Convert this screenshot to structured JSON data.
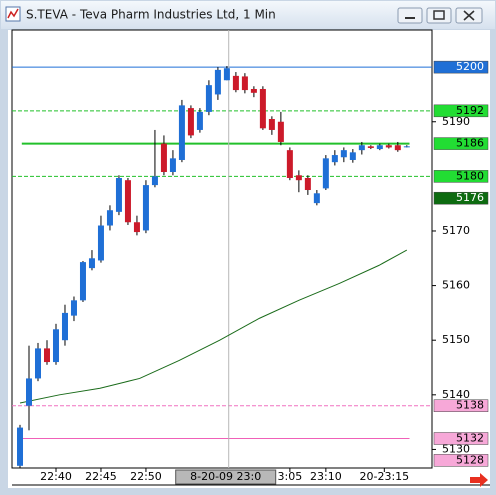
{
  "window": {
    "title": "S.TEVA - Teva Pharm Industries Ltd, 1 Min"
  },
  "chart_data": {
    "type": "candlestick",
    "ylim": [
      5126.6,
      5206.8
    ],
    "xlim": [
      -0.89,
      45.8
    ],
    "yticks": [
      5190,
      5170,
      5160,
      5150,
      5140,
      5130
    ],
    "xticks": [
      {
        "value": 4,
        "label": "22:40"
      },
      {
        "value": 9,
        "label": "22:45"
      },
      {
        "value": 14,
        "label": "22:50"
      },
      {
        "value": 30,
        "label": "3:05"
      },
      {
        "value": 34,
        "label": "23:10"
      },
      {
        "value": 40.5,
        "label": "20-23:15"
      }
    ],
    "crosshair": {
      "x": 23.2,
      "label": "8-20-09 23:0"
    },
    "up_color": "#1f6fd6",
    "down_color": "#cc1a2a",
    "candles": [
      [
        5127,
        5134.5,
        5126,
        5134
      ],
      [
        5138,
        5149,
        5133.5,
        5143
      ],
      [
        5143,
        5149.5,
        5142.5,
        5148.5
      ],
      [
        5148.5,
        5150,
        5145.5,
        5146
      ],
      [
        5146,
        5153,
        5145.5,
        5152
      ],
      [
        5150,
        5156.5,
        5149,
        5155
      ],
      [
        5154.5,
        5158,
        5153.5,
        5157.3
      ],
      [
        5157.3,
        5164.5,
        5157,
        5164.3
      ],
      [
        5163.2,
        5166.5,
        5162.8,
        5165
      ],
      [
        5164.6,
        5172.8,
        5164.2,
        5171
      ],
      [
        5171,
        5174.7,
        5170.1,
        5173.8
      ],
      [
        5173.5,
        5180.2,
        5172.9,
        5179.7
      ],
      [
        5179.3,
        5179.7,
        5171.1,
        5171.6
      ],
      [
        5171.6,
        5172.8,
        5169.2,
        5169.8
      ],
      [
        5170.1,
        5179.3,
        5169.6,
        5178.4
      ],
      [
        5178.4,
        5188.5,
        5178,
        5180
      ],
      [
        5186,
        5187.5,
        5180.2,
        5180.8
      ],
      [
        5180.8,
        5184.8,
        5180.2,
        5183.3
      ],
      [
        5183,
        5194,
        5182.6,
        5193
      ],
      [
        5192.5,
        5193,
        5187,
        5187.5
      ],
      [
        5188.5,
        5192.5,
        5188,
        5191.8
      ],
      [
        5191.8,
        5197.6,
        5191.2,
        5196.7
      ],
      [
        5195,
        5200,
        5194,
        5199.5
      ],
      [
        5197.6,
        5200.2,
        5197.6,
        5199.8
      ],
      [
        5198.4,
        5199.1,
        5195.4,
        5195.8
      ],
      [
        5198.3,
        5198.9,
        5195.2,
        5195.8
      ],
      [
        5196,
        5196.5,
        5194.5,
        5195.3
      ],
      [
        5196,
        5196.5,
        5188.5,
        5188.8
      ],
      [
        5190.5,
        5191,
        5187.6,
        5188.5
      ],
      [
        5190,
        5191.8,
        5185.7,
        5186.3
      ],
      [
        5184.8,
        5185.3,
        5179.3,
        5179.7
      ],
      [
        5180.2,
        5181.1,
        5177.1,
        5179.3
      ],
      [
        5179.7,
        5180.2,
        5176.6,
        5177.5
      ],
      [
        5175.1,
        5177.5,
        5174.7,
        5176.9
      ],
      [
        5177.8,
        5183.9,
        5177.5,
        5183.3
      ],
      [
        5182.6,
        5184.8,
        5182,
        5183.9
      ],
      [
        5183.5,
        5185.3,
        5182.6,
        5184.8
      ],
      [
        5183,
        5185,
        5182.5,
        5184.4
      ],
      [
        5184.8,
        5186.3,
        5184,
        5185.7
      ],
      [
        5185.5,
        5185.7,
        5185,
        5185.2
      ],
      [
        5185,
        5186,
        5184.8,
        5185.7
      ],
      [
        5185.7,
        5186,
        5185.1,
        5185.3
      ],
      [
        5185.7,
        5186.3,
        5184.5,
        5184.8
      ],
      [
        5185.5,
        5185.7,
        5185.3,
        5185.5
      ]
    ],
    "moving_average": {
      "color": "#1a6b1a",
      "x": [
        0,
        4.4,
        8.9,
        13.3,
        17.7,
        22.2,
        26.6,
        31,
        35.5,
        39.9,
        43
      ],
      "values": [
        5138.5,
        5140,
        5141.2,
        5143,
        5146.3,
        5150,
        5154,
        5157.3,
        5160.4,
        5163.7,
        5166.5
      ]
    },
    "levels": [
      {
        "value": 5200,
        "color": "#1f6fd6",
        "style": "solid",
        "label_bg": "#1f6fd6",
        "label_fg": "#ffffff"
      },
      {
        "value": 5192,
        "color": "#22c02a",
        "style": "dashed",
        "label_bg": "#22dd33",
        "label_fg": "#000000"
      },
      {
        "value": 5186,
        "color": "#22c02a",
        "style": "thick",
        "label_bg": "#22dd33",
        "label_fg": "#000000"
      },
      {
        "value": 5180,
        "color": "#22c02a",
        "style": "dashed",
        "label_bg": "#22dd33",
        "label_fg": "#000000"
      },
      {
        "value": 5176,
        "color": null,
        "style": "none",
        "label_bg": "#0d6b10",
        "label_fg": "#ffffff"
      },
      {
        "value": 5138,
        "color": "#f070c0",
        "style": "dashed",
        "label_bg": "#f7a8d8",
        "label_fg": "#000000"
      },
      {
        "value": 5132,
        "color": "#f060b8",
        "style": "solid",
        "label_bg": "#f7a8d8",
        "label_fg": "#000000"
      },
      {
        "value": 5128,
        "color": null,
        "style": "none",
        "label_bg": "#f7a8d8",
        "label_fg": "#000000"
      }
    ]
  }
}
